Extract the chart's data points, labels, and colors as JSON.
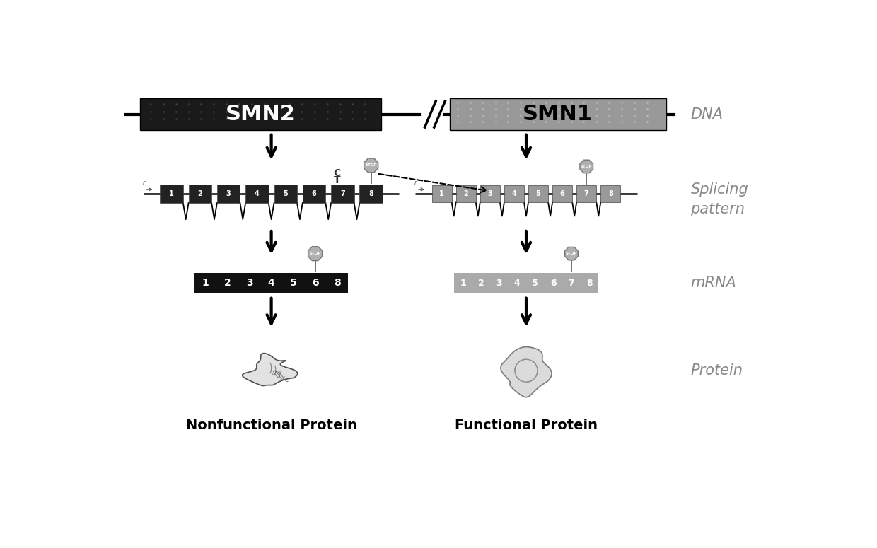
{
  "bg_color": "#ffffff",
  "smn2_color": "#1a1a1a",
  "smn1_color": "#aaaaaa",
  "smn2_label": "SMN2",
  "smn1_label": "SMN1",
  "dna_label": "DNA",
  "splicing_label": "Splicing\npattern",
  "mrna_label": "mRNA",
  "protein_label": "Protein",
  "nonfunc_label": "Nonfunctional Protein",
  "func_label": "Functional Protein",
  "exon_labels": [
    "1",
    "2",
    "3",
    "4",
    "5",
    "6",
    "7",
    "8"
  ],
  "smn2_exon_color": "#222222",
  "smn1_exon_color": "#999999",
  "mrna_smn2_color": "#111111",
  "mrna_smn1_color": "#aaaaaa",
  "label_color": "#888888",
  "label_fontsize": 15,
  "exon_fontsize": 8,
  "stop_color": "#aaaaaa",
  "line_color": "#000000"
}
